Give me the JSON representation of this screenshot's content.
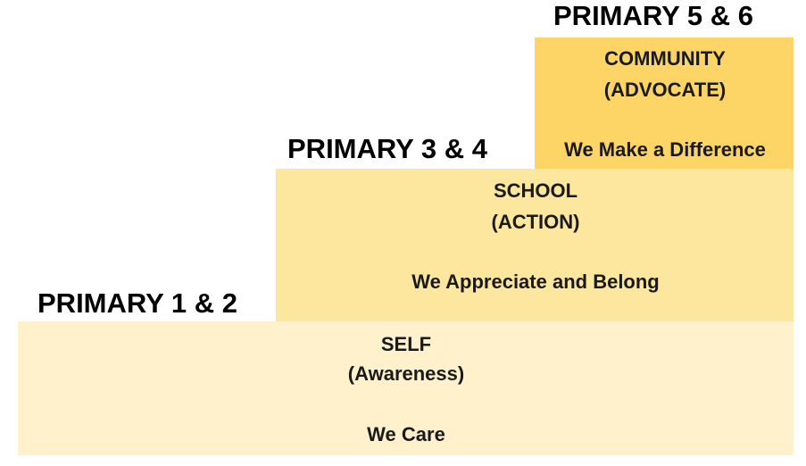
{
  "levels": [
    {
      "grade": "PRIMARY 1 & 2",
      "focus": "SELF",
      "role": "(Awareness)",
      "motto": "We Care",
      "color": "#fef1cc"
    },
    {
      "grade": "PRIMARY 3 & 4",
      "focus": "SCHOOL",
      "role": "(ACTION)",
      "motto": "We Appreciate and Belong",
      "color": "#fde69d"
    },
    {
      "grade": "PRIMARY 5 & 6",
      "focus": "COMMUNITY",
      "role": "(ADVOCATE)",
      "motto": "We Make a Difference",
      "color": "#fcd566"
    }
  ]
}
